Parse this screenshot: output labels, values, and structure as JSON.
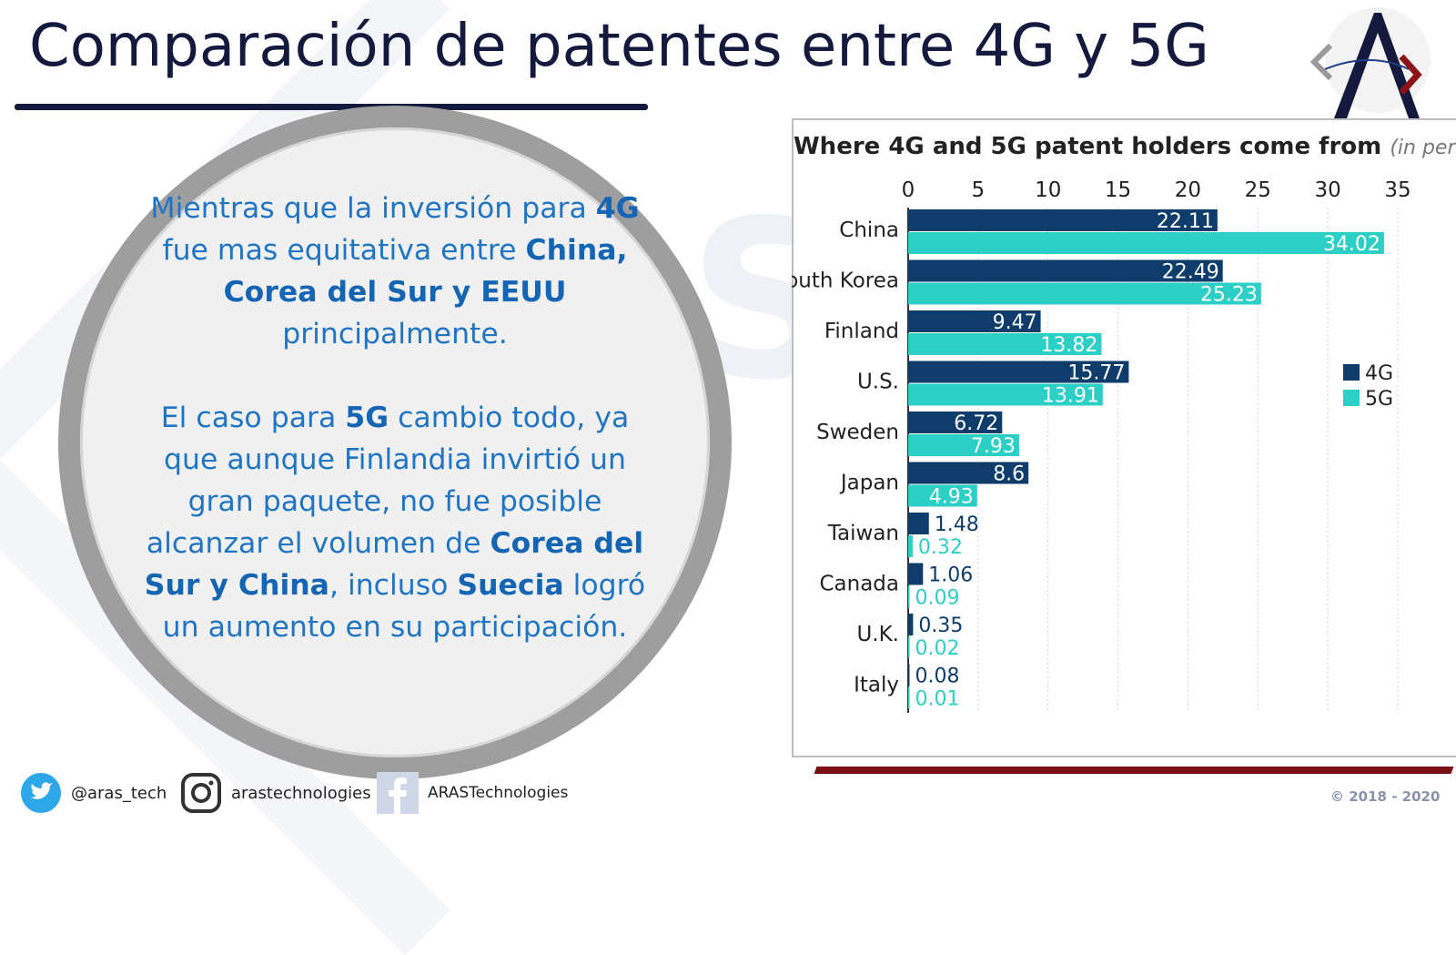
{
  "slide": {
    "title": "Comparación de patentes entre 4G y 5G",
    "copyright": "© 2018 - 2020"
  },
  "circle": {
    "p1": [
      {
        "t": "Mientras que la inversión para ",
        "b": false
      },
      {
        "t": "4G",
        "b": true
      },
      {
        "t": " fue mas equitativa entre ",
        "b": false
      },
      {
        "t": "China, Corea del Sur y EEUU",
        "b": true
      },
      {
        "t": " principalmente.",
        "b": false
      }
    ],
    "p2": [
      {
        "t": "El caso para ",
        "b": false
      },
      {
        "t": "5G",
        "b": true
      },
      {
        "t": " cambio todo, ya que aunque Finlandia invirtió un gran paquete, no fue posible alcanzar el volumen de ",
        "b": false
      },
      {
        "t": "Corea del Sur y China",
        "b": true
      },
      {
        "t": ", incluso ",
        "b": false
      },
      {
        "t": "Suecia",
        "b": true
      },
      {
        "t": " logró un aumento en su participación.",
        "b": false
      }
    ]
  },
  "social": {
    "twitter": "@aras_tech",
    "instagram": "arastechnologies",
    "facebook": "ARASTechnologies"
  },
  "chart_data": {
    "type": "bar",
    "orientation": "horizontal",
    "title": "Where 4G and 5G patent holders come from",
    "subtitle": "(in percent)",
    "categories": [
      "China",
      "South Korea",
      "Finland",
      "U.S.",
      "Sweden",
      "Japan",
      "Taiwan",
      "Canada",
      "U.K.",
      "Italy"
    ],
    "series": [
      {
        "name": "4G",
        "color": "#0e3d6b",
        "values": [
          22.11,
          22.49,
          9.47,
          15.77,
          6.72,
          8.6,
          1.48,
          1.06,
          0.35,
          0.08
        ]
      },
      {
        "name": "5G",
        "color": "#2ccfc5",
        "values": [
          34.02,
          25.23,
          13.82,
          13.91,
          7.93,
          4.93,
          0.32,
          0.09,
          0.02,
          0.01
        ]
      }
    ],
    "value_labels": [
      [
        "22.11",
        "22.49",
        "9.47",
        "15.77",
        "6.72",
        "8.6",
        "1.48",
        "1.06",
        "0.35",
        "0.08"
      ],
      [
        "34.02",
        "25.23",
        "13.82",
        "13.91",
        "7.93",
        "4.93",
        "0.32",
        "0.09",
        "0.02",
        "0.01"
      ]
    ],
    "xticks": [
      "0",
      "5",
      "10",
      "15",
      "20",
      "25",
      "30",
      "35"
    ],
    "xlim": [
      0,
      35
    ],
    "grid": true,
    "legend": "right"
  }
}
